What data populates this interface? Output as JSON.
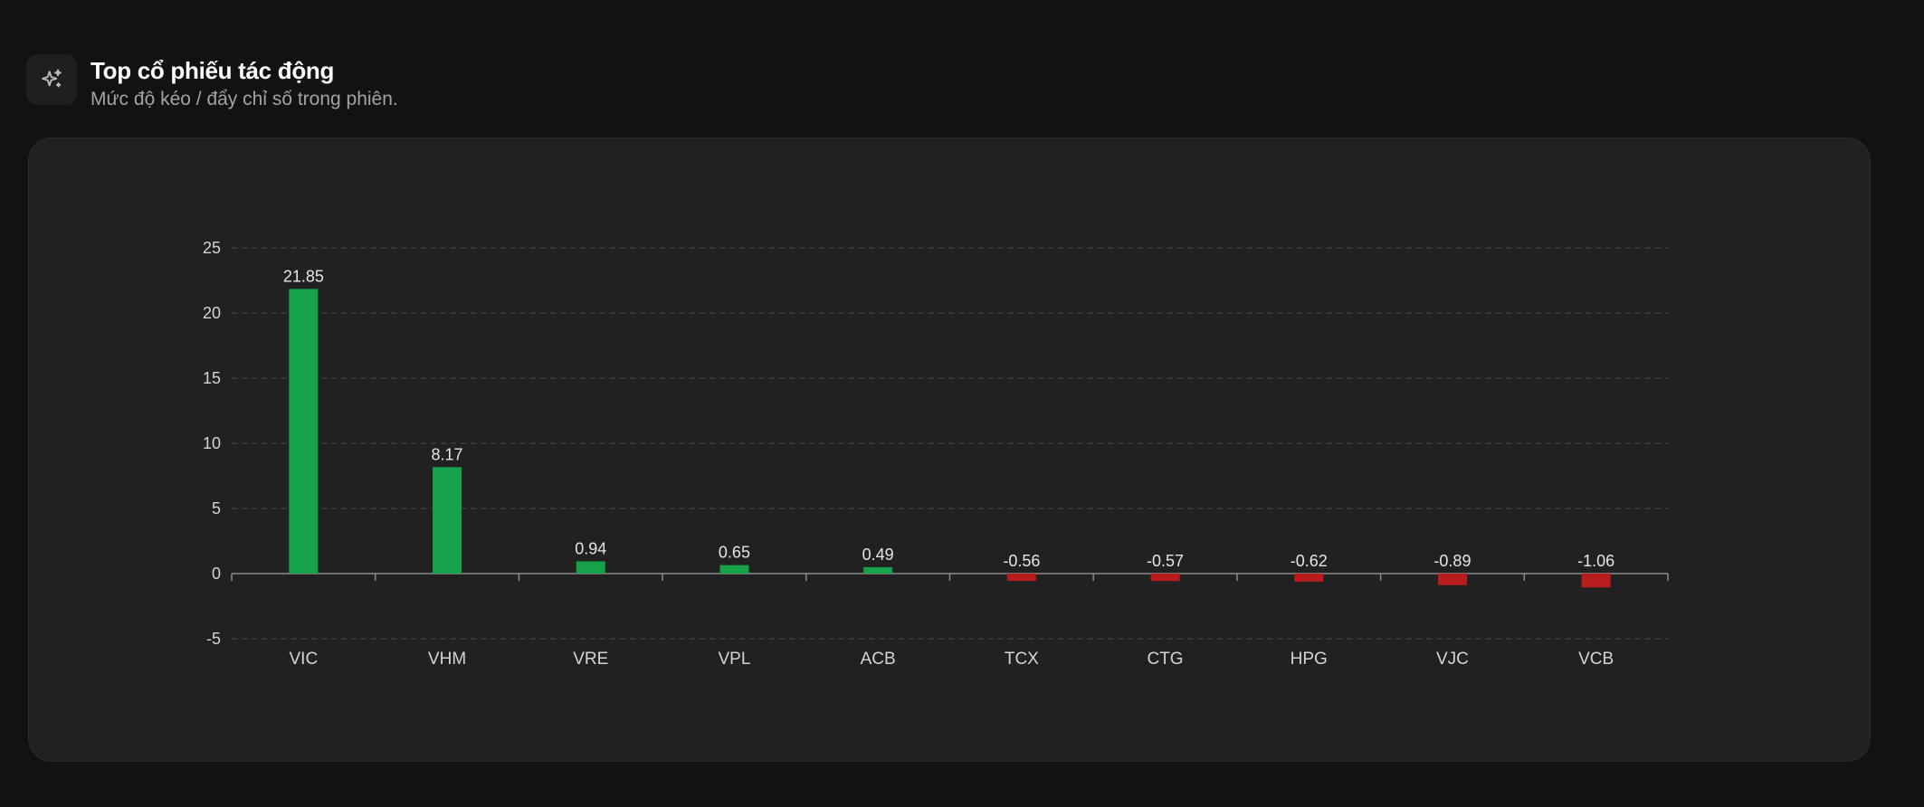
{
  "header": {
    "icon": "sparkles-icon",
    "title": "Top cổ phiếu tác động",
    "subtitle": "Mức độ kéo / đẩy chỉ số trong phiên."
  },
  "colors": {
    "positive": "#16a34a",
    "negative": "#b91c1c",
    "text": "#d4d4d4",
    "grid": "#4a4a4a",
    "axis": "#8a8a8a"
  },
  "chart_data": {
    "type": "bar",
    "categories": [
      "VIC",
      "VHM",
      "VRE",
      "VPL",
      "ACB",
      "TCX",
      "CTG",
      "HPG",
      "VJC",
      "VCB"
    ],
    "values": [
      21.85,
      8.17,
      0.94,
      0.65,
      0.49,
      -0.56,
      -0.57,
      -0.62,
      -0.89,
      -1.06
    ],
    "data_labels": [
      "21.85",
      "8.17",
      "0.94",
      "0.65",
      "0.49",
      "-0.56",
      "-0.57",
      "-0.62",
      "-0.89",
      "-1.06"
    ],
    "ylim": [
      -5,
      25
    ],
    "yticks": [
      -5,
      0,
      5,
      10,
      15,
      20,
      25
    ],
    "ytick_labels": [
      "-5",
      "0",
      "5",
      "10",
      "15",
      "20",
      "25"
    ],
    "grid": true,
    "legend": "none"
  }
}
